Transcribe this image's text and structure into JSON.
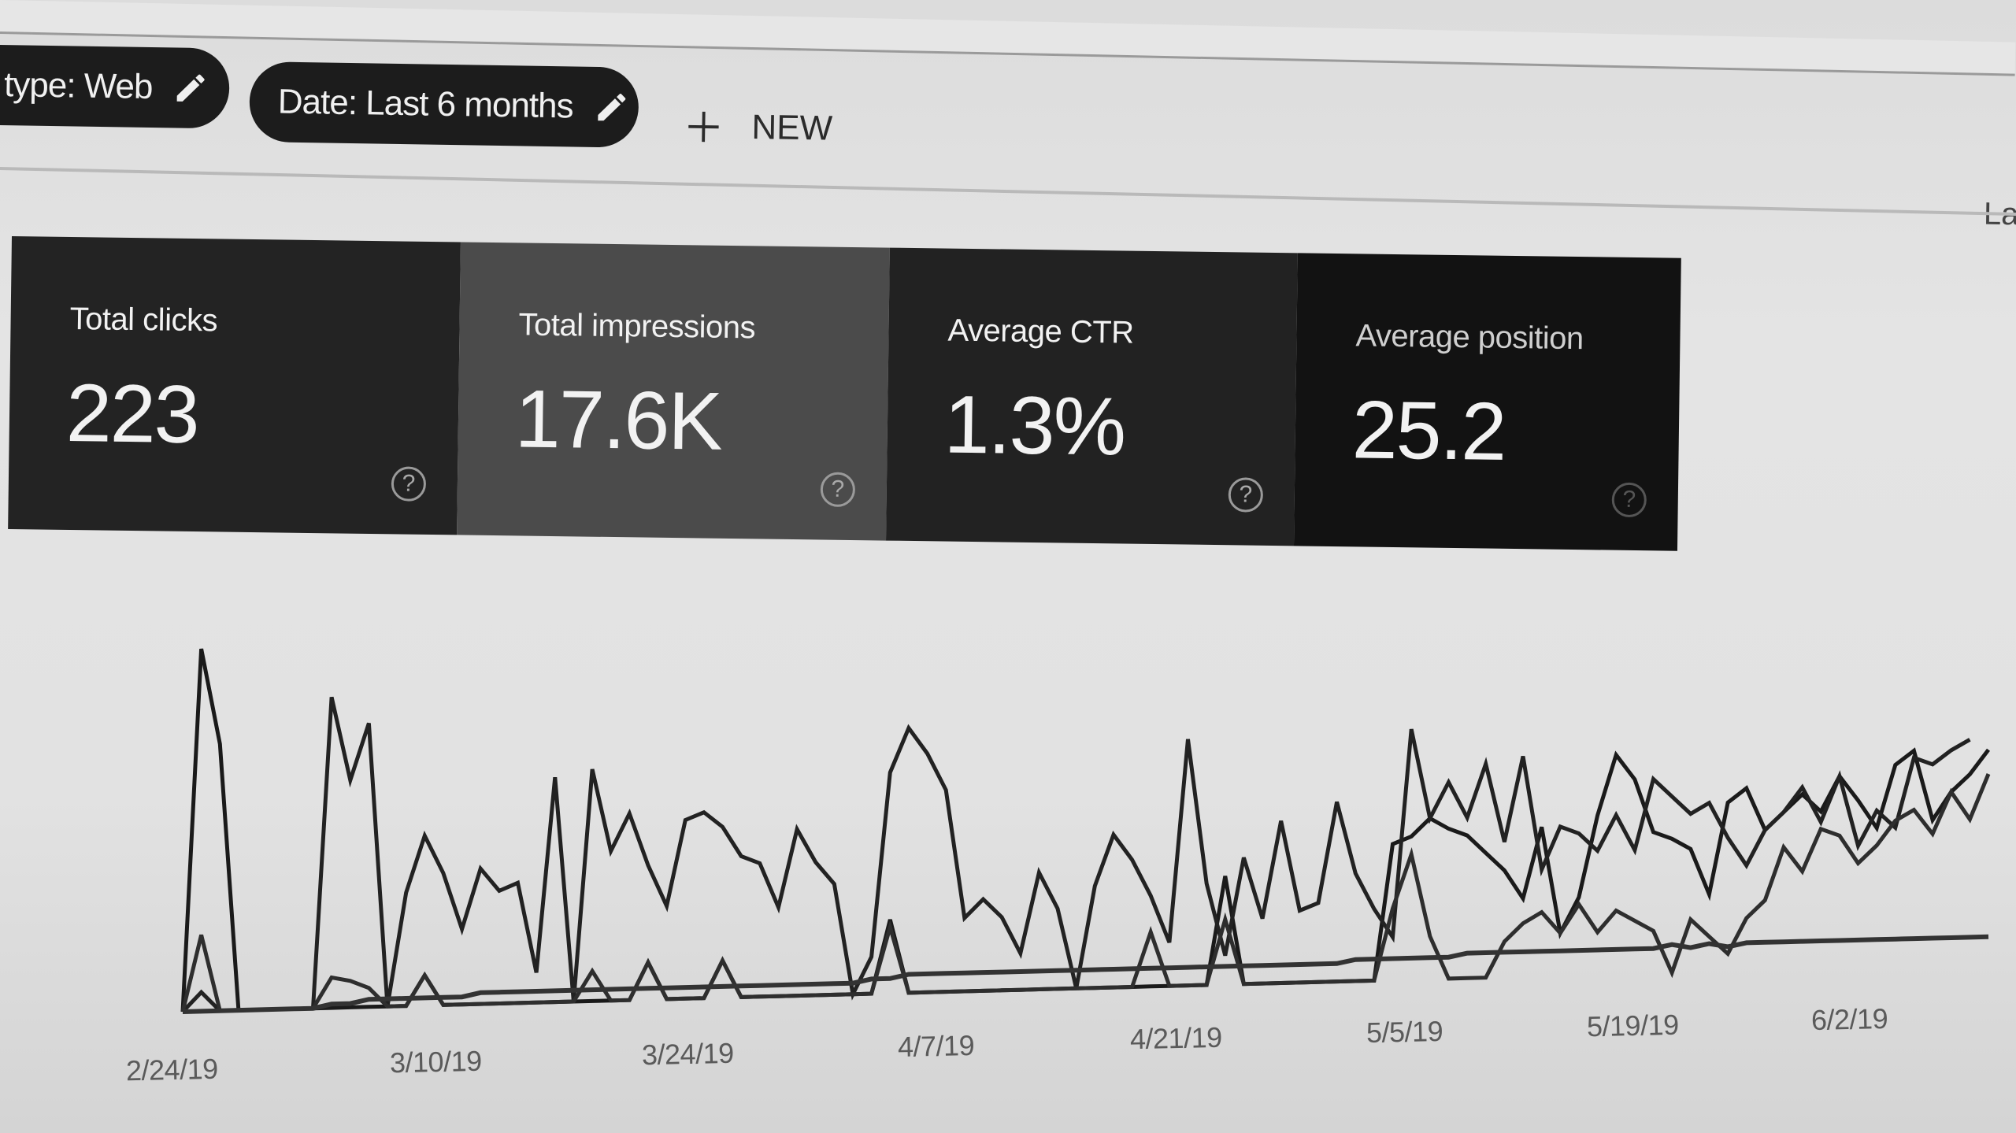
{
  "toolbar": {
    "filters": [
      {
        "label": "type: Web",
        "icon": "pencil-icon"
      },
      {
        "label": "Date: Last 6 months",
        "icon": "pencil-icon"
      }
    ],
    "new_button": {
      "label": "NEW",
      "icon": "plus-icon"
    },
    "right_cut_text": "La"
  },
  "metrics": [
    {
      "label": "Total clicks",
      "value": "223",
      "icon": "help-icon",
      "bg": "#232323"
    },
    {
      "label": "Total impressions",
      "value": "17.6K",
      "icon": "help-icon",
      "bg": "#4b4b4b"
    },
    {
      "label": "Average CTR",
      "value": "1.3%",
      "icon": "help-icon",
      "bg": "#222222"
    },
    {
      "label": "Average position",
      "value": "25.2",
      "icon": "help-icon",
      "bg": "#121212"
    }
  ],
  "chart_data": {
    "type": "line",
    "title": "",
    "xlabel": "",
    "ylabel": "",
    "grid": false,
    "legend": "none",
    "x_tick_labels": [
      "2/24/19",
      "3/10/19",
      "3/24/19",
      "4/7/19",
      "4/21/19",
      "5/5/19",
      "5/19/19",
      "6/2/19"
    ],
    "series": [
      {
        "name": "Total clicks",
        "values": [
          0,
          95,
          70,
          0,
          0,
          0,
          0,
          0,
          0,
          0,
          0,
          0,
          0,
          8,
          0,
          0,
          0,
          0,
          0,
          0,
          0,
          0,
          0,
          0,
          0,
          10,
          0,
          0,
          0,
          10,
          0,
          0,
          0,
          0,
          0,
          0,
          0,
          0,
          20,
          0,
          0,
          0,
          0,
          0,
          0,
          0,
          0,
          0,
          0,
          0,
          0,
          0,
          0,
          0,
          0,
          0,
          30,
          0,
          0,
          0,
          0,
          0,
          0,
          0,
          0,
          38,
          40,
          45,
          42,
          40,
          35,
          30,
          22,
          42,
          12,
          22,
          45,
          62,
          55,
          40,
          38,
          35,
          22,
          48,
          52,
          40,
          45,
          50,
          45,
          55,
          48,
          40,
          58,
          62,
          42,
          50,
          55,
          62
        ]
      },
      {
        "name": "Total impressions",
        "values": [
          0,
          5,
          0,
          0,
          0,
          0,
          0,
          0,
          82,
          60,
          75,
          0,
          30,
          45,
          35,
          20,
          36,
          30,
          32,
          8,
          60,
          0,
          62,
          40,
          50,
          36,
          25,
          48,
          50,
          46,
          38,
          36,
          24,
          45,
          36,
          30,
          0,
          10,
          60,
          72,
          65,
          55,
          20,
          25,
          20,
          10,
          32,
          22,
          0,
          28,
          42,
          35,
          25,
          12,
          68,
          28,
          8,
          35,
          18,
          45,
          20,
          22,
          50,
          30,
          20,
          12,
          70,
          45,
          55,
          45,
          60,
          38,
          62,
          30,
          42,
          40,
          35,
          45,
          35,
          55,
          50,
          45,
          48,
          38,
          30,
          40,
          45,
          52,
          42,
          55,
          35,
          45,
          40,
          60,
          58,
          62,
          65
        ]
      },
      {
        "name": "Average CTR",
        "values": [
          0,
          20,
          0,
          0,
          0,
          0,
          0,
          0,
          8,
          7,
          5,
          0,
          0,
          8,
          0,
          0,
          0,
          0,
          0,
          0,
          0,
          0,
          8,
          0,
          0,
          10,
          0,
          0,
          0,
          10,
          0,
          0,
          0,
          0,
          0,
          0,
          0,
          0,
          18,
          0,
          0,
          0,
          0,
          0,
          0,
          0,
          0,
          0,
          0,
          0,
          0,
          0,
          15,
          0,
          0,
          0,
          18,
          0,
          0,
          0,
          0,
          0,
          0,
          0,
          0,
          20,
          35,
          12,
          0,
          0,
          0,
          10,
          15,
          18,
          12,
          20,
          12,
          18,
          15,
          12,
          0,
          15,
          10,
          5,
          15,
          20,
          35,
          28,
          40,
          38,
          30,
          35,
          42,
          45,
          38,
          50,
          42,
          55
        ]
      },
      {
        "name": "Average position",
        "values": [
          0,
          0,
          0,
          0,
          0,
          0,
          0,
          0,
          1,
          1,
          2,
          2,
          2,
          2,
          2,
          2,
          3,
          3,
          3,
          3,
          3,
          3,
          3,
          3,
          3,
          3,
          3,
          3,
          3,
          3,
          3,
          3,
          3,
          3,
          3,
          3,
          3,
          4,
          4,
          5,
          5,
          5,
          5,
          5,
          5,
          5,
          5,
          5,
          5,
          5,
          5,
          5,
          5,
          5,
          5,
          5,
          5,
          5,
          5,
          5,
          5,
          5,
          5,
          6,
          6,
          6,
          6,
          6,
          6,
          7,
          7,
          7,
          7,
          7,
          7,
          7,
          7,
          7,
          7,
          7,
          8,
          7,
          8,
          7,
          8,
          8,
          8,
          8,
          8,
          8,
          8,
          8,
          8,
          8,
          8,
          8,
          8,
          8
        ]
      }
    ]
  }
}
